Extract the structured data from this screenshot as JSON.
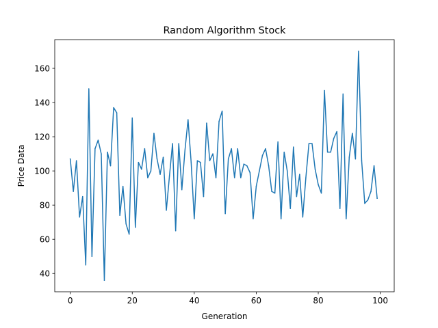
{
  "chart_data": {
    "type": "line",
    "title": "Random Algorithm Stock",
    "xlabel": "Generation",
    "ylabel": "Price Data",
    "xlim": [
      -5,
      104.5
    ],
    "ylim": [
      29.3,
      176.8
    ],
    "xticks": [
      0,
      20,
      40,
      60,
      80,
      100
    ],
    "yticks": [
      40,
      60,
      80,
      100,
      120,
      140,
      160
    ],
    "grid": false,
    "series": [
      {
        "color": "#1f77b4",
        "x": [
          0,
          1,
          2,
          3,
          4,
          5,
          6,
          7,
          8,
          9,
          10,
          11,
          12,
          13,
          14,
          15,
          16,
          17,
          18,
          19,
          20,
          21,
          22,
          23,
          24,
          25,
          26,
          27,
          28,
          29,
          30,
          31,
          32,
          33,
          34,
          35,
          36,
          37,
          38,
          39,
          40,
          41,
          42,
          43,
          44,
          45,
          46,
          47,
          48,
          49,
          50,
          51,
          52,
          53,
          54,
          55,
          56,
          57,
          58,
          59,
          60,
          61,
          62,
          63,
          64,
          65,
          66,
          67,
          68,
          69,
          70,
          71,
          72,
          73,
          74,
          75,
          76,
          77,
          78,
          79,
          80,
          81,
          82,
          83,
          84,
          85,
          86,
          87,
          88,
          89,
          90,
          91,
          92,
          93,
          94,
          95,
          96,
          97,
          98,
          99
        ],
        "values": [
          107,
          88,
          106,
          73,
          85,
          45,
          148,
          50,
          113,
          118,
          110,
          36,
          111,
          103,
          137,
          134,
          74,
          91,
          69,
          63,
          131,
          67,
          105,
          101,
          113,
          96,
          100,
          122,
          107,
          98,
          108,
          77,
          97,
          116,
          65,
          116,
          89,
          112,
          130,
          105,
          72,
          106,
          105,
          85,
          128,
          106,
          110,
          96,
          129,
          135,
          75,
          107,
          113,
          96,
          113,
          96,
          104,
          103,
          99,
          72,
          91,
          100,
          109,
          113,
          103,
          88,
          87,
          117,
          72,
          111,
          100,
          78,
          114,
          85,
          98,
          73,
          96,
          116,
          116,
          101,
          92,
          87,
          147,
          111,
          111,
          119,
          123,
          78,
          145,
          72,
          108,
          122,
          107,
          170,
          106,
          81,
          83,
          88,
          103,
          84
        ]
      }
    ]
  }
}
